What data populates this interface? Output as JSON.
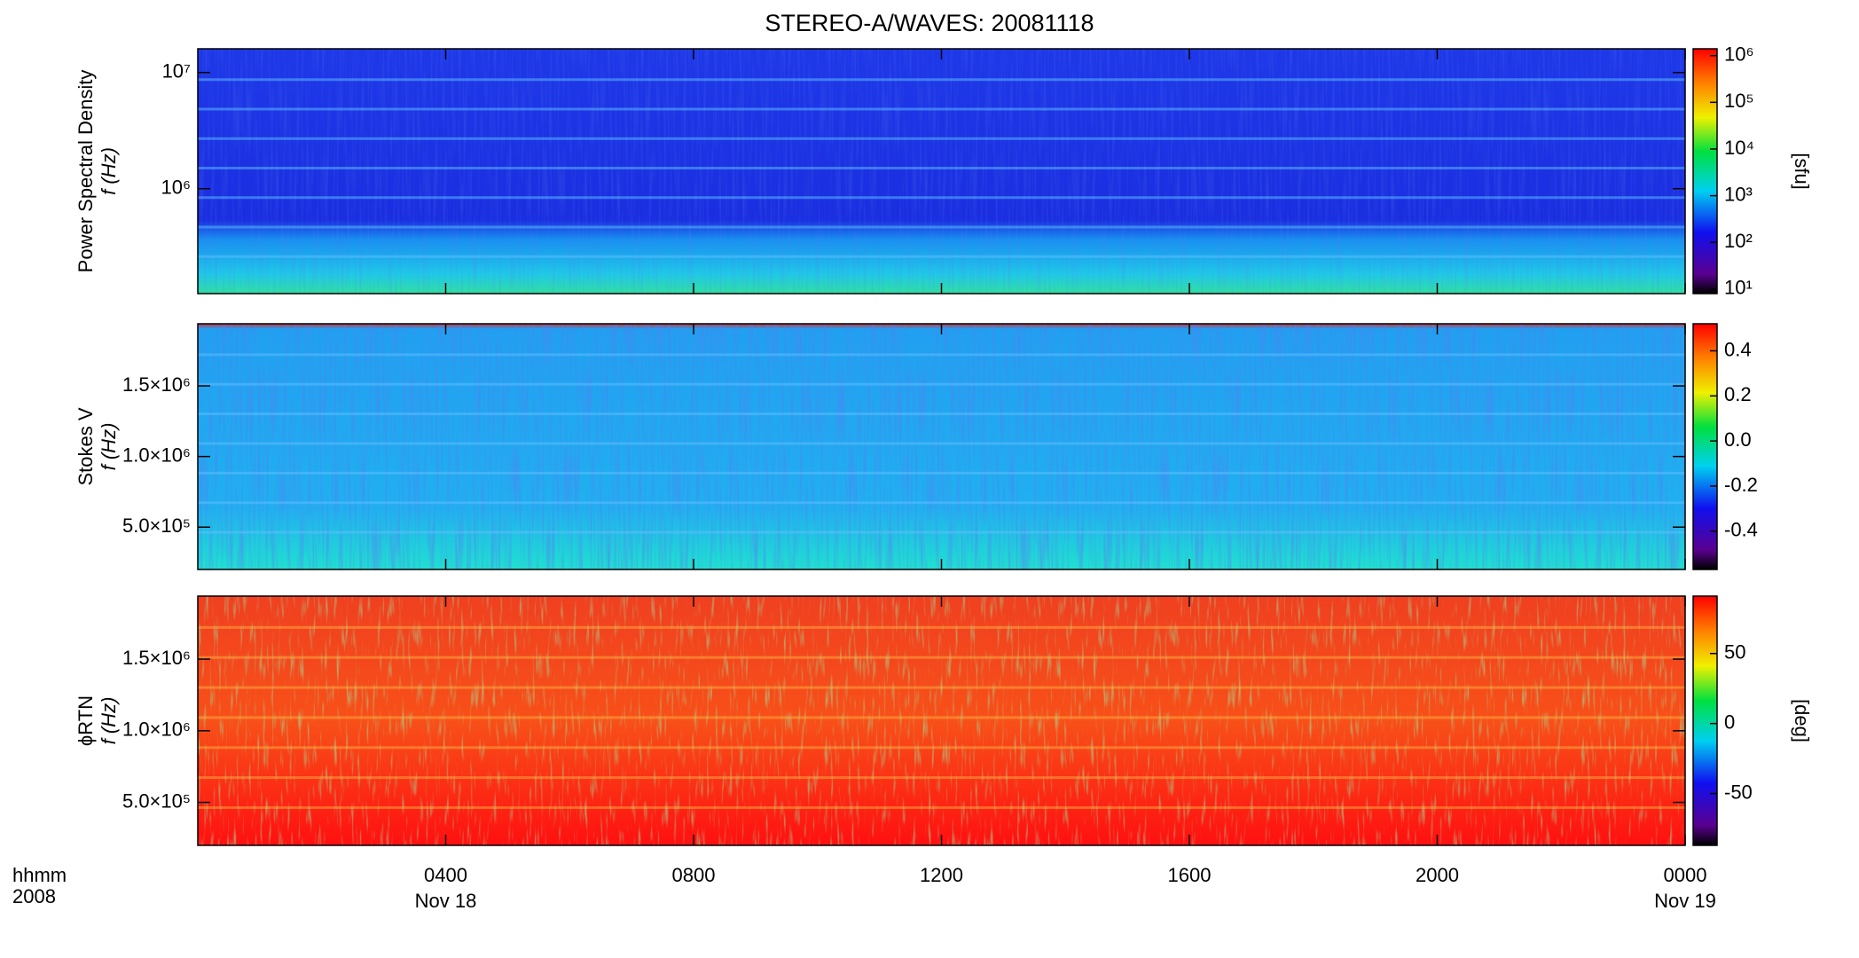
{
  "title": "STEREO-A/WAVES: 20081118",
  "chart_data": [
    {
      "type": "spectrogram",
      "ylabel": "Power Spectral Density",
      "ylabel2": "f (Hz)",
      "log": true,
      "ylim": [
        125000,
        16000000
      ],
      "yticks": [
        {
          "value": 1000000,
          "label": "10⁶"
        },
        {
          "value": 10000000,
          "label": "10⁷"
        }
      ],
      "colorbar": {
        "label": "[sfu]",
        "log": true,
        "lim": [
          8,
          1400000
        ],
        "ticks": [
          {
            "value": 10,
            "label": "10¹"
          },
          {
            "value": 100,
            "label": "10²"
          },
          {
            "value": 1000,
            "label": "10³"
          },
          {
            "value": 10000,
            "label": "10⁴"
          },
          {
            "value": 100000,
            "label": "10⁵"
          },
          {
            "value": 1000000,
            "label": "10⁶"
          }
        ]
      }
    },
    {
      "type": "spectrogram",
      "ylabel": "Stokes V",
      "ylabel2": "f (Hz)",
      "log": false,
      "ylim": [
        200000,
        1940000
      ],
      "yticks": [
        {
          "value": 500000,
          "label": "5.0×10⁵"
        },
        {
          "value": 1000000,
          "label": "1.0×10⁶"
        },
        {
          "value": 1500000,
          "label": "1.5×10⁶"
        }
      ],
      "colorbar": {
        "log": false,
        "lim": [
          -0.57,
          0.52
        ],
        "ticks": [
          -0.4,
          -0.2,
          {
            "value": 0,
            "label": "0.0"
          },
          0.2,
          0.4
        ]
      }
    },
    {
      "type": "spectrogram",
      "ylabel": "ϕRTN",
      "ylabel2": "f (Hz)",
      "log": false,
      "ylim": [
        200000,
        1940000
      ],
      "yticks": [
        {
          "value": 500000,
          "label": "5.0×10⁵"
        },
        {
          "value": 1000000,
          "label": "1.0×10⁶"
        },
        {
          "value": 1500000,
          "label": "1.5×10⁶"
        }
      ],
      "colorbar": {
        "label": "[deg]",
        "log": false,
        "lim": [
          -87,
          91
        ],
        "ticks": [
          -50,
          0,
          50
        ]
      }
    }
  ],
  "x_axis": {
    "label": "hhmm",
    "label2": "2008",
    "xlim": [
      0,
      24
    ],
    "xticks": [
      {
        "value": 4,
        "label": "0400"
      },
      {
        "value": 8,
        "label": "0800"
      },
      {
        "value": 12,
        "label": "1200"
      },
      {
        "value": 16,
        "label": "1600"
      },
      {
        "value": 20,
        "label": "2000"
      },
      {
        "value": 24,
        "label": "0000"
      }
    ],
    "date_labels": [
      {
        "value": 4,
        "label": "Nov 18"
      },
      {
        "value": 24,
        "label": "Nov 19"
      }
    ]
  }
}
